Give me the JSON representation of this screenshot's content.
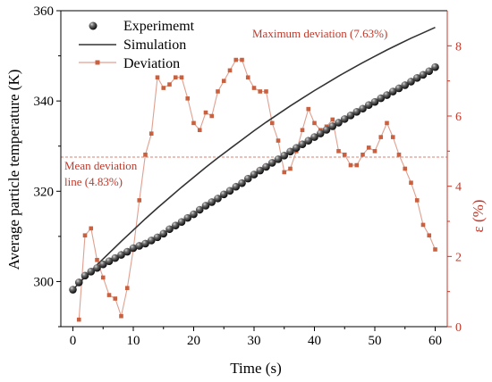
{
  "chart_data": {
    "type": "line",
    "xlabel": "Time (s)",
    "ylabel": "Average particle temperature (K)",
    "y2label": "ε (%)",
    "xlim": [
      -2,
      62
    ],
    "ylim": [
      290,
      360
    ],
    "y2lim": [
      0,
      9
    ],
    "xticks": [
      0,
      10,
      20,
      30,
      40,
      50,
      60
    ],
    "yticks": [
      300,
      320,
      340,
      360
    ],
    "y2ticks": [
      0,
      2,
      4,
      6,
      8
    ],
    "legend_position": "top-left",
    "annotations": {
      "max_deviation": "Maximum deviation (7.63%)",
      "mean_line_1": "Mean deviation",
      "mean_line_2": "line (4.83%)"
    },
    "mean_deviation_value": 4.83,
    "colors": {
      "axis_right": "#c0392b",
      "deviation": "#c9603f",
      "simulation": "#333333",
      "experiment": "#1a1a1a"
    },
    "series": [
      {
        "name": "Experimemt",
        "axis": "left",
        "style": "sphere-markers",
        "x": [
          0,
          1,
          2,
          3,
          4,
          5,
          6,
          7,
          8,
          9,
          10,
          11,
          12,
          13,
          14,
          15,
          16,
          17,
          18,
          19,
          20,
          21,
          22,
          23,
          24,
          25,
          26,
          27,
          28,
          29,
          30,
          31,
          32,
          33,
          34,
          35,
          36,
          37,
          38,
          39,
          40,
          41,
          42,
          43,
          44,
          45,
          46,
          47,
          48,
          49,
          50,
          51,
          52,
          53,
          54,
          55,
          56,
          57,
          58,
          59,
          60
        ],
        "y": [
          298.2,
          299.8,
          301.3,
          302.2,
          303,
          303.8,
          304.5,
          305.2,
          305.9,
          306.6,
          307.4,
          307.9,
          308.4,
          309.1,
          309.8,
          310.6,
          311.6,
          312.4,
          313.2,
          314.1,
          314.9,
          315.9,
          316.8,
          317.6,
          318.4,
          319.3,
          320.1,
          321,
          321.8,
          322.8,
          323.7,
          324.6,
          325.4,
          326.3,
          327.1,
          327.9,
          328.8,
          329.6,
          330.4,
          331.2,
          332,
          332.8,
          333.6,
          334.4,
          335.2,
          336,
          336.8,
          337.6,
          338.3,
          339.1,
          339.8,
          340.6,
          341.3,
          342.1,
          342.8,
          343.5,
          344.3,
          345.1,
          345.8,
          346.6,
          347.5
        ]
      },
      {
        "name": "Simulation",
        "axis": "left",
        "style": "line",
        "x": [
          0,
          2,
          4,
          6,
          8,
          10,
          12,
          14,
          16,
          18,
          20,
          22,
          24,
          26,
          28,
          30,
          32,
          34,
          36,
          38,
          40,
          42,
          44,
          46,
          48,
          50,
          52,
          54,
          56,
          58,
          60
        ],
        "y": [
          298.2,
          301,
          303.7,
          306.3,
          308.9,
          311.4,
          313.9,
          316.3,
          318.6,
          320.9,
          323.1,
          325.3,
          327.4,
          329.4,
          331.4,
          333.4,
          335.3,
          337.1,
          338.9,
          340.6,
          342.3,
          343.9,
          345.5,
          347,
          348.5,
          349.9,
          351.3,
          352.6,
          353.9,
          355.1,
          356.3
        ]
      },
      {
        "name": "Deviation",
        "axis": "right",
        "style": "line-square-markers",
        "x": [
          1,
          2,
          3,
          4,
          5,
          6,
          7,
          8,
          9,
          10,
          11,
          12,
          13,
          14,
          15,
          16,
          17,
          18,
          19,
          20,
          21,
          22,
          23,
          24,
          25,
          26,
          27,
          28,
          29,
          30,
          31,
          32,
          33,
          34,
          35,
          36,
          37,
          38,
          39,
          40,
          41,
          42,
          43,
          44,
          45,
          46,
          47,
          48,
          49,
          50,
          51,
          52,
          53,
          54,
          55,
          56,
          57,
          58,
          59,
          60
        ],
        "y": [
          0.2,
          2.6,
          2.8,
          1.9,
          1.4,
          0.9,
          0.8,
          0.3,
          1.1,
          2.2,
          3.6,
          4.9,
          5.5,
          7.1,
          6.8,
          6.9,
          7.1,
          7.1,
          6.5,
          5.8,
          5.6,
          6.1,
          6.0,
          6.7,
          7.0,
          7.3,
          7.6,
          7.6,
          7.1,
          6.8,
          6.7,
          6.7,
          5.8,
          5.3,
          4.4,
          4.5,
          5.0,
          5.6,
          6.2,
          5.8,
          5.6,
          5.7,
          5.9,
          5.0,
          4.9,
          4.6,
          4.6,
          4.9,
          5.1,
          5.0,
          5.4,
          5.8,
          5.4,
          4.9,
          4.5,
          4.1,
          3.6,
          2.9,
          2.6,
          2.2
        ]
      }
    ]
  }
}
